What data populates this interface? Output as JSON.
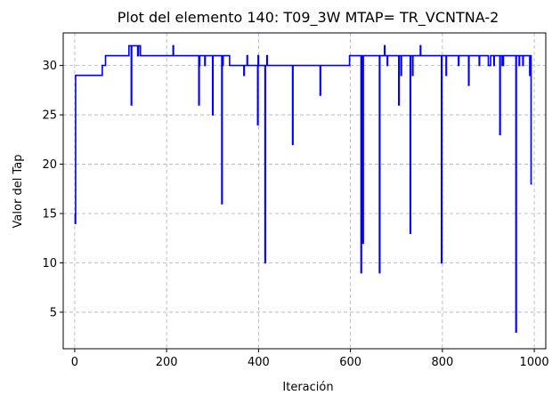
{
  "chart_data": {
    "type": "line",
    "title": "Plot del elemento 140: T09_3W MTAP= TR_VCNTNA-2",
    "xlabel": "Iteración",
    "ylabel": "Valor del Tap",
    "xlim": [
      -25,
      1025
    ],
    "ylim": [
      1.3,
      33.3
    ],
    "xticks": [
      0,
      200,
      400,
      600,
      800,
      1000
    ],
    "yticks": [
      5,
      10,
      15,
      20,
      25,
      30
    ],
    "grid": true,
    "series": [
      {
        "color": "#0000ff",
        "points": [
          [
            0,
            15
          ],
          [
            1,
            15
          ],
          [
            1,
            14
          ],
          [
            2,
            14
          ],
          [
            2,
            29
          ],
          [
            3,
            29
          ],
          [
            60,
            29
          ],
          [
            60,
            30
          ],
          [
            67,
            30
          ],
          [
            67,
            31
          ],
          [
            118,
            31
          ],
          [
            118,
            32
          ],
          [
            123,
            32
          ],
          [
            123,
            26
          ],
          [
            124,
            26
          ],
          [
            124,
            32
          ],
          [
            137,
            32
          ],
          [
            137,
            31
          ],
          [
            139,
            31
          ],
          [
            139,
            32
          ],
          [
            143,
            32
          ],
          [
            143,
            31
          ],
          [
            214,
            31
          ],
          [
            214,
            32
          ],
          [
            215,
            32
          ],
          [
            215,
            31
          ],
          [
            270,
            31
          ],
          [
            270,
            26
          ],
          [
            271,
            26
          ],
          [
            271,
            30
          ],
          [
            272,
            30
          ],
          [
            272,
            31
          ],
          [
            283,
            31
          ],
          [
            283,
            30
          ],
          [
            284,
            30
          ],
          [
            284,
            31
          ],
          [
            300,
            31
          ],
          [
            300,
            25
          ],
          [
            301,
            25
          ],
          [
            301,
            31
          ],
          [
            320,
            31
          ],
          [
            320,
            16
          ],
          [
            321,
            16
          ],
          [
            321,
            30
          ],
          [
            323,
            30
          ],
          [
            323,
            31
          ],
          [
            337,
            31
          ],
          [
            337,
            30
          ],
          [
            368,
            30
          ],
          [
            368,
            29
          ],
          [
            369,
            29
          ],
          [
            369,
            30
          ],
          [
            375,
            30
          ],
          [
            375,
            31
          ],
          [
            376,
            31
          ],
          [
            376,
            30
          ],
          [
            398,
            30
          ],
          [
            398,
            24
          ],
          [
            399,
            24
          ],
          [
            399,
            31
          ],
          [
            400,
            31
          ],
          [
            400,
            30
          ],
          [
            414,
            30
          ],
          [
            414,
            10
          ],
          [
            415,
            10
          ],
          [
            415,
            30
          ],
          [
            418,
            30
          ],
          [
            418,
            31
          ],
          [
            419,
            31
          ],
          [
            419,
            30
          ],
          [
            474,
            30
          ],
          [
            474,
            22
          ],
          [
            475,
            22
          ],
          [
            475,
            30
          ],
          [
            534,
            30
          ],
          [
            534,
            27
          ],
          [
            535,
            27
          ],
          [
            535,
            30
          ],
          [
            598,
            30
          ],
          [
            598,
            31
          ],
          [
            623,
            31
          ],
          [
            623,
            9
          ],
          [
            624,
            9
          ],
          [
            624,
            31
          ],
          [
            627,
            31
          ],
          [
            627,
            12
          ],
          [
            628,
            12
          ],
          [
            628,
            31
          ],
          [
            663,
            31
          ],
          [
            663,
            9
          ],
          [
            664,
            9
          ],
          [
            664,
            31
          ],
          [
            674,
            31
          ],
          [
            674,
            32
          ],
          [
            675,
            32
          ],
          [
            675,
            31
          ],
          [
            680,
            31
          ],
          [
            680,
            30
          ],
          [
            681,
            30
          ],
          [
            681,
            31
          ],
          [
            705,
            31
          ],
          [
            705,
            26
          ],
          [
            706,
            26
          ],
          [
            706,
            31
          ],
          [
            710,
            31
          ],
          [
            710,
            29
          ],
          [
            711,
            29
          ],
          [
            711,
            31
          ],
          [
            730,
            31
          ],
          [
            730,
            13
          ],
          [
            731,
            13
          ],
          [
            731,
            31
          ],
          [
            735,
            31
          ],
          [
            735,
            29
          ],
          [
            736,
            29
          ],
          [
            736,
            31
          ],
          [
            752,
            31
          ],
          [
            752,
            32
          ],
          [
            753,
            32
          ],
          [
            753,
            31
          ],
          [
            798,
            31
          ],
          [
            798,
            10
          ],
          [
            799,
            10
          ],
          [
            799,
            31
          ],
          [
            808,
            31
          ],
          [
            808,
            29
          ],
          [
            809,
            29
          ],
          [
            809,
            31
          ],
          [
            835,
            31
          ],
          [
            835,
            30
          ],
          [
            836,
            30
          ],
          [
            836,
            31
          ],
          [
            857,
            31
          ],
          [
            857,
            28
          ],
          [
            858,
            28
          ],
          [
            858,
            31
          ],
          [
            880,
            31
          ],
          [
            880,
            30
          ],
          [
            881,
            30
          ],
          [
            881,
            31
          ],
          [
            900,
            31
          ],
          [
            900,
            30
          ],
          [
            905,
            30
          ],
          [
            905,
            31
          ],
          [
            912,
            31
          ],
          [
            912,
            30
          ],
          [
            913,
            30
          ],
          [
            913,
            31
          ],
          [
            925,
            31
          ],
          [
            925,
            23
          ],
          [
            926,
            23
          ],
          [
            926,
            31
          ],
          [
            930,
            31
          ],
          [
            930,
            30
          ],
          [
            933,
            30
          ],
          [
            933,
            31
          ],
          [
            960,
            31
          ],
          [
            960,
            3
          ],
          [
            961,
            3
          ],
          [
            961,
            31
          ],
          [
            967,
            31
          ],
          [
            967,
            30
          ],
          [
            968,
            30
          ],
          [
            968,
            31
          ],
          [
            975,
            31
          ],
          [
            975,
            30
          ],
          [
            976,
            30
          ],
          [
            976,
            31
          ],
          [
            990,
            31
          ],
          [
            990,
            29
          ],
          [
            991,
            29
          ],
          [
            991,
            31
          ],
          [
            993,
            31
          ],
          [
            993,
            18
          ],
          [
            995,
            18
          ]
        ]
      }
    ]
  }
}
